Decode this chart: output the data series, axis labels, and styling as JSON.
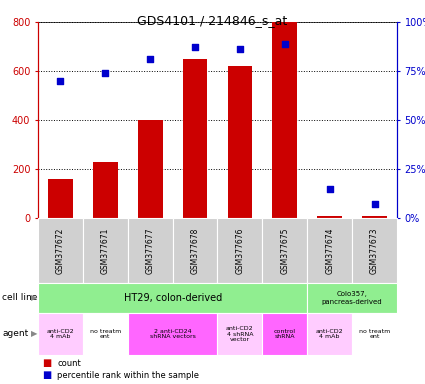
{
  "title": "GDS4101 / 214846_s_at",
  "samples": [
    "GSM377672",
    "GSM377671",
    "GSM377677",
    "GSM377678",
    "GSM377676",
    "GSM377675",
    "GSM377674",
    "GSM377673"
  ],
  "counts": [
    160,
    230,
    400,
    650,
    620,
    800,
    10,
    10
  ],
  "percentile_ranks": [
    70,
    74,
    81,
    87,
    86,
    89,
    15,
    7
  ],
  "bar_color": "#cc0000",
  "dot_color": "#0000cc",
  "agent_groups": [
    {
      "label": "anti-CD2\n4 mAb",
      "start": 0,
      "end": 1,
      "color": "#ffccff"
    },
    {
      "label": "no treatm\nent",
      "start": 1,
      "end": 2,
      "color": "#ffffff"
    },
    {
      "label": "2 anti-CD24\nshRNA vectors",
      "start": 2,
      "end": 4,
      "color": "#ff66ff"
    },
    {
      "label": "anti-CD2\n4 shRNA\nvector",
      "start": 4,
      "end": 5,
      "color": "#ffccff"
    },
    {
      "label": "control\nshRNA",
      "start": 5,
      "end": 6,
      "color": "#ff66ff"
    },
    {
      "label": "anti-CD2\n4 mAb",
      "start": 6,
      "end": 7,
      "color": "#ffccff"
    },
    {
      "label": "no treatm\nent",
      "start": 7,
      "end": 8,
      "color": "#ffffff"
    }
  ],
  "ylim_left": [
    0,
    800
  ],
  "ylim_right": [
    0,
    100
  ],
  "yticks_left": [
    0,
    200,
    400,
    600,
    800
  ],
  "yticks_right": [
    0,
    25,
    50,
    75,
    100
  ],
  "yticklabels_right": [
    "0%",
    "25%",
    "50%",
    "75%",
    "100%"
  ],
  "left_axis_color": "#cc0000",
  "right_axis_color": "#0000cc",
  "plot_bg_color": "#ffffff",
  "gray_box_color": "#d0d0d0",
  "cell_line_color": "#90ee90",
  "agent_white": "#ffffff",
  "agent_light_pink": "#ffccff",
  "agent_magenta": "#ff66ff"
}
